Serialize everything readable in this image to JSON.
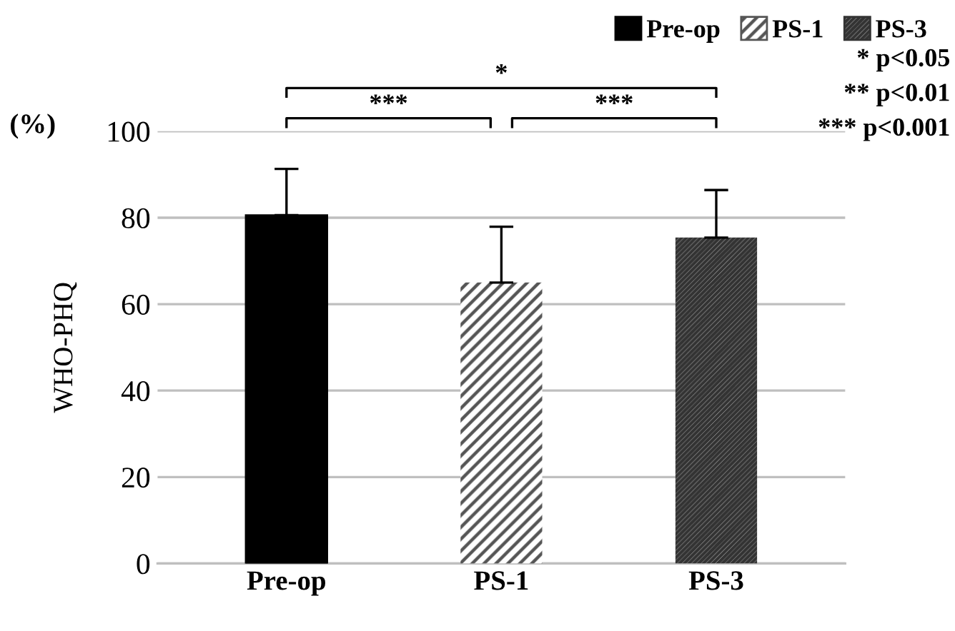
{
  "chart_data": {
    "type": "bar",
    "categories": [
      "Pre-op",
      "PS-1",
      "PS-3"
    ],
    "series": [
      {
        "name": "Pre-op",
        "color": "#000000",
        "values": [
          80.6,
          null,
          null
        ],
        "errors": [
          [
            80.6,
            91.3
          ],
          null,
          null
        ]
      },
      {
        "name": "PS-1",
        "color": "#555555",
        "values": [
          null,
          65.0,
          null
        ],
        "errors": [
          null,
          [
            65.0,
            77.9
          ],
          null
        ]
      },
      {
        "name": "PS-3",
        "color": "#333333",
        "values": [
          null,
          null,
          75.4
        ],
        "errors": [
          null,
          null,
          [
            75.4,
            86.4
          ]
        ]
      }
    ],
    "ylabel": "WHO-PHQ",
    "ylim": [
      0,
      100
    ],
    "yticks": [
      0,
      20,
      40,
      60,
      80,
      100
    ],
    "grid": "y",
    "legend": "top right",
    "annotations": [
      "(%)",
      "***",
      "***",
      "*",
      "* p<0.05",
      "** p<0.01",
      "*** p<0.001"
    ]
  }
}
